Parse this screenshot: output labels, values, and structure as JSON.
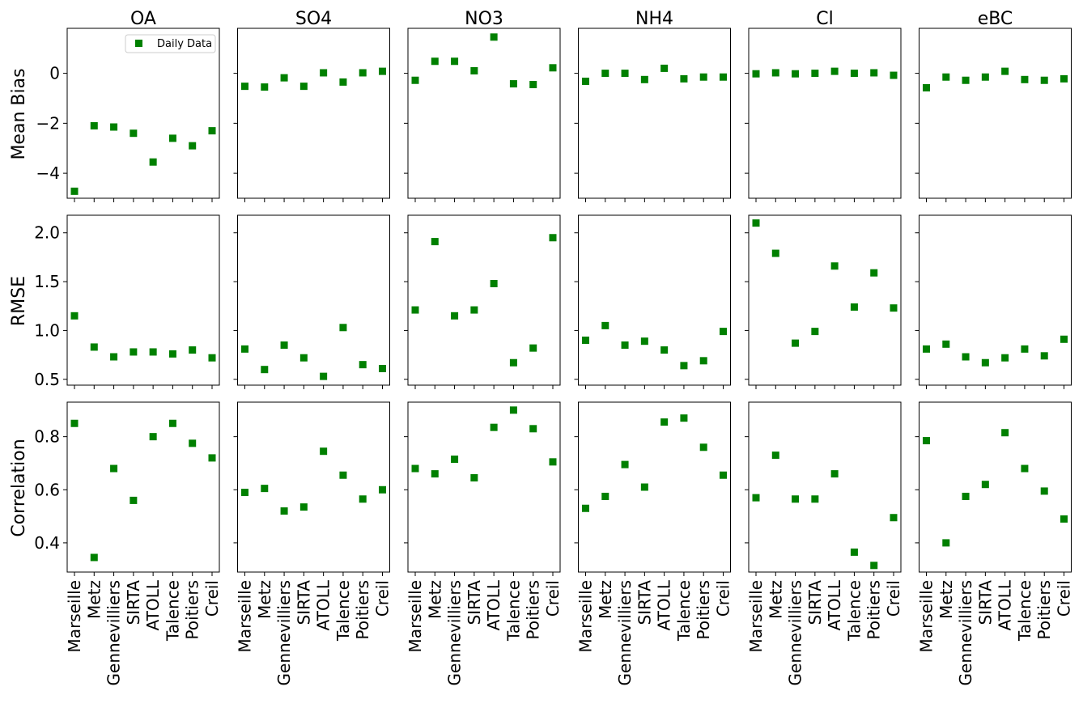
{
  "figure": {
    "columns": [
      "OA",
      "SO4",
      "NO3",
      "NH4",
      "Cl",
      "eBC"
    ],
    "row_labels": [
      "Mean Bias",
      "RMSE",
      "Correlation"
    ],
    "legend_label": "Daily Data",
    "marker_color": "#008000"
  },
  "chart_data": [
    {
      "type": "scatter",
      "metric": "Mean Bias",
      "categories": [
        "Marseille",
        "Metz",
        "Gennevilliers",
        "SIRTA",
        "ATOLL",
        "Talence",
        "Poitiers",
        "Creil"
      ],
      "ylabel": "Mean Bias",
      "ylim": [
        -5.0,
        1.8
      ],
      "yticks": [
        -4,
        -2,
        0
      ],
      "ytick_labels": [
        "−4",
        "−2",
        "0"
      ],
      "series": [
        {
          "name": "Daily Data",
          "panel": "OA",
          "values": [
            -4.72,
            -2.1,
            -2.15,
            -2.4,
            -3.55,
            -2.6,
            -2.9,
            -2.3
          ]
        },
        {
          "panel": "SO4",
          "values": [
            -0.52,
            -0.55,
            -0.18,
            -0.52,
            0.02,
            -0.35,
            0.02,
            0.08
          ]
        },
        {
          "panel": "NO3",
          "values": [
            -0.28,
            0.48,
            0.48,
            0.1,
            1.45,
            -0.42,
            -0.45,
            0.22
          ]
        },
        {
          "panel": "NH4",
          "values": [
            -0.32,
            0.0,
            0.0,
            -0.25,
            0.2,
            -0.22,
            -0.15,
            -0.15
          ]
        },
        {
          "panel": "Cl",
          "values": [
            -0.02,
            0.02,
            -0.02,
            0.0,
            0.08,
            0.0,
            0.02,
            -0.08
          ]
        },
        {
          "panel": "eBC",
          "values": [
            -0.58,
            -0.15,
            -0.28,
            -0.15,
            0.08,
            -0.25,
            -0.28,
            -0.22
          ]
        }
      ]
    },
    {
      "type": "scatter",
      "metric": "RMSE",
      "categories": [
        "Marseille",
        "Metz",
        "Gennevilliers",
        "SIRTA",
        "ATOLL",
        "Talence",
        "Poitiers",
        "Creil"
      ],
      "ylabel": "RMSE",
      "ylim": [
        0.44,
        2.18
      ],
      "yticks": [
        0.5,
        1.0,
        1.5,
        2.0
      ],
      "ytick_labels": [
        "0.5",
        "1.0",
        "1.5",
        "2.0"
      ],
      "series": [
        {
          "name": "Daily Data",
          "panel": "OA",
          "values": [
            1.15,
            0.83,
            0.73,
            0.78,
            0.78,
            0.76,
            0.8,
            0.72
          ]
        },
        {
          "panel": "SO4",
          "values": [
            0.81,
            0.6,
            0.85,
            0.72,
            0.53,
            1.03,
            0.65,
            0.61
          ]
        },
        {
          "panel": "NO3",
          "values": [
            1.21,
            1.91,
            1.15,
            1.21,
            1.48,
            0.67,
            0.82,
            1.95
          ]
        },
        {
          "panel": "NH4",
          "values": [
            0.9,
            1.05,
            0.85,
            0.89,
            0.8,
            0.64,
            0.69,
            0.99
          ]
        },
        {
          "panel": "Cl",
          "values": [
            2.1,
            1.79,
            0.87,
            0.99,
            1.66,
            1.24,
            1.59,
            1.23
          ]
        },
        {
          "panel": "eBC",
          "values": [
            0.81,
            0.86,
            0.73,
            0.67,
            0.72,
            0.81,
            0.74,
            0.91
          ]
        }
      ]
    },
    {
      "type": "scatter",
      "metric": "Correlation",
      "categories": [
        "Marseille",
        "Metz",
        "Gennevilliers",
        "SIRTA",
        "ATOLL",
        "Talence",
        "Poitiers",
        "Creil"
      ],
      "ylabel": "Correlation",
      "ylim": [
        0.29,
        0.93
      ],
      "yticks": [
        0.4,
        0.6,
        0.8
      ],
      "ytick_labels": [
        "0.4",
        "0.6",
        "0.8"
      ],
      "series": [
        {
          "name": "Daily Data",
          "panel": "OA",
          "values": [
            0.85,
            0.345,
            0.68,
            0.56,
            0.8,
            0.85,
            0.775,
            0.72
          ]
        },
        {
          "panel": "SO4",
          "values": [
            0.59,
            0.605,
            0.52,
            0.535,
            0.745,
            0.655,
            0.565,
            0.6
          ]
        },
        {
          "panel": "NO3",
          "values": [
            0.68,
            0.66,
            0.715,
            0.645,
            0.835,
            0.9,
            0.83,
            0.705
          ]
        },
        {
          "panel": "NH4",
          "values": [
            0.53,
            0.575,
            0.695,
            0.61,
            0.855,
            0.87,
            0.76,
            0.655
          ]
        },
        {
          "panel": "Cl",
          "values": [
            0.57,
            0.73,
            0.565,
            0.565,
            0.66,
            0.365,
            0.315,
            0.495
          ]
        },
        {
          "panel": "eBC",
          "values": [
            0.785,
            0.4,
            0.575,
            0.62,
            0.815,
            0.68,
            0.595,
            0.49
          ]
        }
      ]
    }
  ]
}
